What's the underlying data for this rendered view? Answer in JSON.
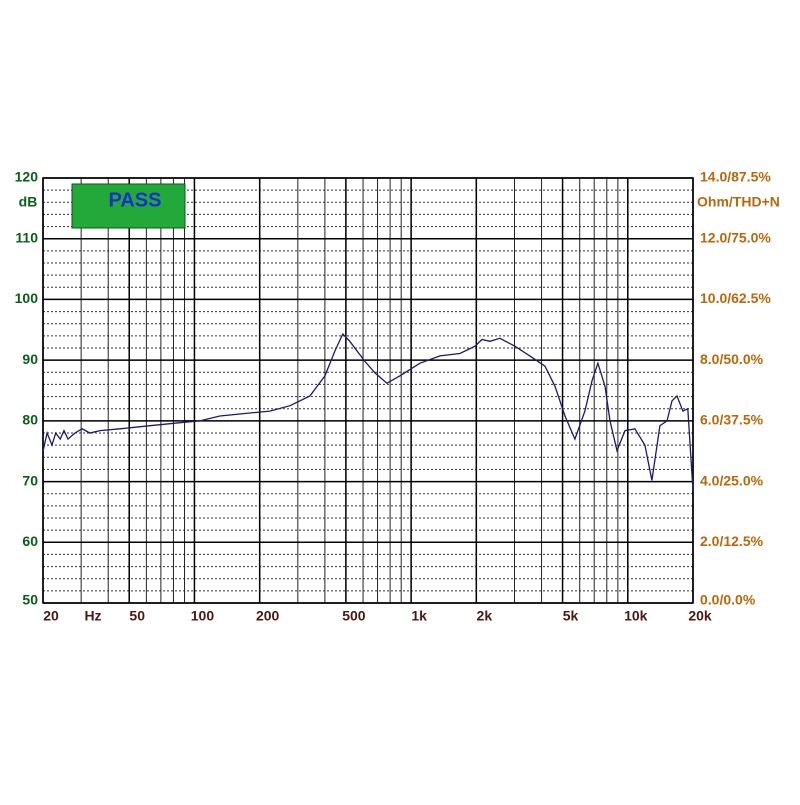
{
  "chart_data": {
    "type": "line",
    "badge": "PASS",
    "y_unit": "dB",
    "x_unit": "Hz",
    "y2_label": "Ohm/THD+N",
    "log_x": true,
    "grid": true,
    "color": "#1a1a6e",
    "xlim": [
      20,
      20000
    ],
    "ylim": [
      50,
      120
    ],
    "y2lim": [
      0,
      14
    ],
    "xticks": [
      20,
      50,
      100,
      200,
      500,
      {
        "value": 1000,
        "label": "1k"
      },
      {
        "value": 2000,
        "label": "2k"
      },
      {
        "value": 5000,
        "label": "5k"
      },
      {
        "value": 10000,
        "label": "10k"
      },
      {
        "value": 20000,
        "label": "20k"
      }
    ],
    "yticks": [
      50,
      60,
      70,
      80,
      90,
      100,
      110,
      120
    ],
    "y2ticks": [
      {
        "value": 0,
        "label": "0.0/0.0%"
      },
      {
        "value": 2,
        "label": "2.0/12.5%"
      },
      {
        "value": 4,
        "label": "4.0/25.0%"
      },
      {
        "value": 6,
        "label": "6.0/37.5%"
      },
      {
        "value": 8,
        "label": "8.0/50.0%"
      },
      {
        "value": 10,
        "label": "10.0/62.5%"
      },
      {
        "value": 12,
        "label": "12.0/75.0%"
      },
      {
        "value": 14,
        "label": "14.0/87.5%"
      }
    ],
    "x": [
      20,
      20.9,
      22,
      22.9,
      24,
      25,
      26.1,
      28.1,
      30.3,
      32.9,
      36.7,
      45.3,
      62.4,
      85.8,
      106,
      131,
      180,
      223,
      276,
      341,
      400,
      445,
      484,
      521,
      612,
      681,
      773,
      887,
      1099,
      1359,
      1679,
      1971,
      2123,
      2312,
      2570,
      3013,
      3532,
      4150,
      4613,
      5129,
      5703,
      6341,
      6840,
      7280,
      7850,
      8280,
      8915,
      9710,
      10790,
      12000,
      12920,
      14070,
      15170,
      16000,
      16870,
      17960,
      18930,
      20000
    ],
    "values": [
      75,
      78,
      76,
      78,
      77,
      78.4,
      77,
      78,
      78.7,
      78,
      78.4,
      78.7,
      79.2,
      79.7,
      80,
      80.8,
      81.3,
      81.6,
      82.5,
      84.1,
      87.4,
      91.5,
      94.3,
      93.1,
      89.8,
      87.9,
      86.2,
      87.4,
      89.5,
      90.7,
      91.1,
      92.3,
      93.4,
      93.1,
      93.6,
      92.3,
      90.7,
      89,
      85.7,
      80.8,
      77,
      81.6,
      86.6,
      89.5,
      85.7,
      80,
      75.1,
      78.4,
      78.7,
      76,
      70.2,
      79.2,
      80,
      83.3,
      84.1,
      81.6,
      82,
      68.5
    ]
  }
}
